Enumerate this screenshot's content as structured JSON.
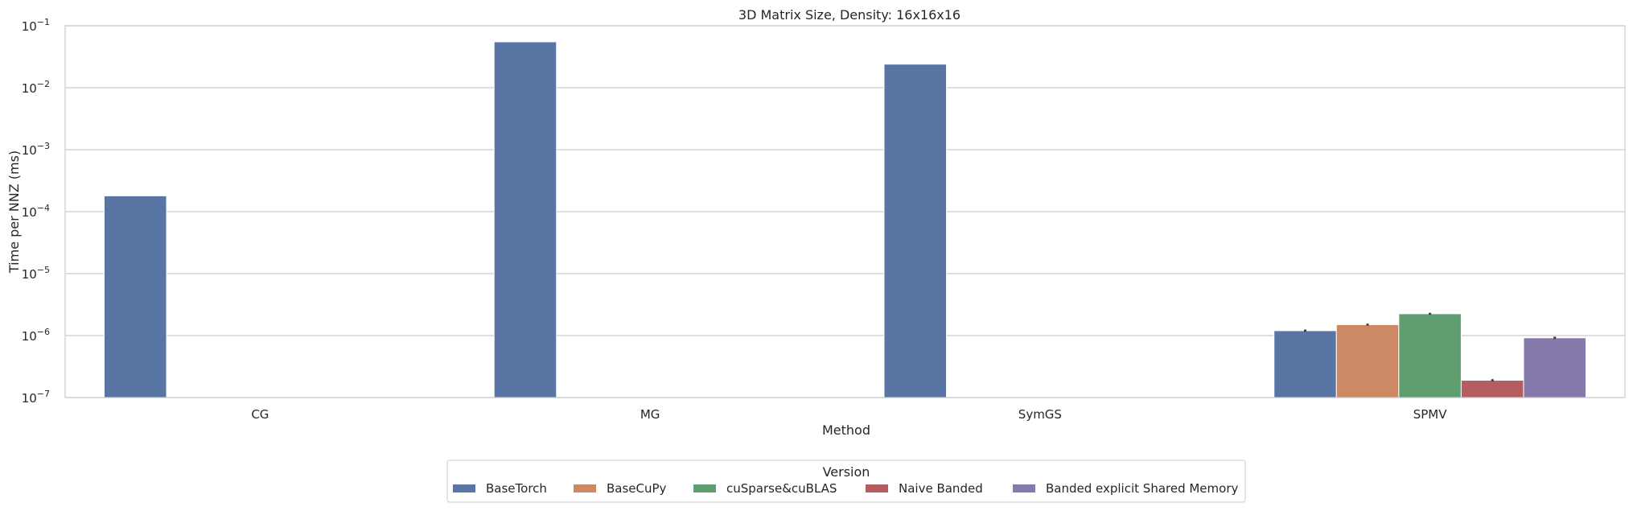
{
  "chart_data": {
    "type": "bar",
    "title": "3D Matrix Size, Density: 16x16x16",
    "xlabel": "Method",
    "ylabel": "Time per NNZ (ms)",
    "yscale": "log",
    "ylim": [
      1e-07,
      0.1
    ],
    "yticks": [
      {
        "value": 1e-07,
        "exp": "−7"
      },
      {
        "value": 1e-06,
        "exp": "−6"
      },
      {
        "value": 1e-05,
        "exp": "−5"
      },
      {
        "value": 0.0001,
        "exp": "−4"
      },
      {
        "value": 0.001,
        "exp": "−3"
      },
      {
        "value": 0.01,
        "exp": "−2"
      },
      {
        "value": 0.1,
        "exp": "−1"
      }
    ],
    "tick_base": "10",
    "grid": true,
    "legend_title": "Version",
    "legend_position": "bottom-center",
    "categories": [
      "CG",
      "MG",
      "SymGS",
      "SPMV"
    ],
    "series": [
      {
        "name": "BaseTorch",
        "color": "#5875a4",
        "values": [
          0.00018,
          0.055,
          0.024,
          1.2e-06
        ],
        "errors": [
          null,
          null,
          null,
          5e-08
        ]
      },
      {
        "name": "BaseCuPy",
        "color": "#cc8963",
        "values": [
          null,
          null,
          null,
          1.5e-06
        ],
        "errors": [
          null,
          null,
          null,
          6e-08
        ]
      },
      {
        "name": "cuSparse&cuBLAS",
        "color": "#5f9e6e",
        "values": [
          null,
          null,
          null,
          2.25e-06
        ],
        "errors": [
          null,
          null,
          null,
          8e-08
        ]
      },
      {
        "name": "Naive Banded",
        "color": "#b55d60",
        "values": [
          null,
          null,
          null,
          1.9e-07
        ],
        "errors": [
          null,
          null,
          null,
          8e-09
        ]
      },
      {
        "name": "Banded explicit Shared Memory",
        "color": "#857aab",
        "values": [
          null,
          null,
          null,
          9.2e-07
        ],
        "errors": [
          null,
          null,
          null,
          4e-08
        ]
      }
    ]
  }
}
